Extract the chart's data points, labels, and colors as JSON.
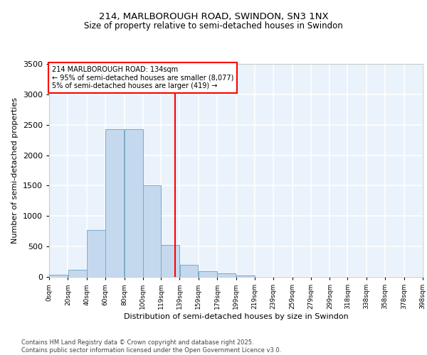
{
  "title": "214, MARLBOROUGH ROAD, SWINDON, SN3 1NX",
  "subtitle": "Size of property relative to semi-detached houses in Swindon",
  "xlabel": "Distribution of semi-detached houses by size in Swindon",
  "ylabel": "Number of semi-detached properties",
  "bar_color": "#c5d9ee",
  "bar_edge_color": "#7aaac8",
  "bg_color": "#eaf2fb",
  "grid_color": "#ffffff",
  "vline_x": 134,
  "vline_color": "red",
  "annotation_text": "214 MARLBOROUGH ROAD: 134sqm\n← 95% of semi-detached houses are smaller (8,077)\n5% of semi-detached houses are larger (419) →",
  "footer": "Contains HM Land Registry data © Crown copyright and database right 2025.\nContains public sector information licensed under the Open Government Licence v3.0.",
  "bins": [
    0,
    20,
    40,
    60,
    80,
    100,
    119,
    139,
    159,
    179,
    199,
    219,
    239,
    259,
    279,
    299,
    318,
    338,
    358,
    378,
    398
  ],
  "counts": [
    30,
    120,
    770,
    2430,
    2430,
    1510,
    530,
    200,
    90,
    60,
    20,
    0,
    0,
    0,
    0,
    0,
    0,
    0,
    0,
    0
  ],
  "ylim": [
    0,
    3500
  ],
  "yticks": [
    0,
    500,
    1000,
    1500,
    2000,
    2500,
    3000,
    3500
  ],
  "tick_labels": [
    "0sqm",
    "20sqm",
    "40sqm",
    "60sqm",
    "80sqm",
    "100sqm",
    "119sqm",
    "139sqm",
    "159sqm",
    "179sqm",
    "199sqm",
    "219sqm",
    "239sqm",
    "259sqm",
    "279sqm",
    "299sqm",
    "318sqm",
    "338sqm",
    "358sqm",
    "378sqm",
    "398sqm"
  ]
}
